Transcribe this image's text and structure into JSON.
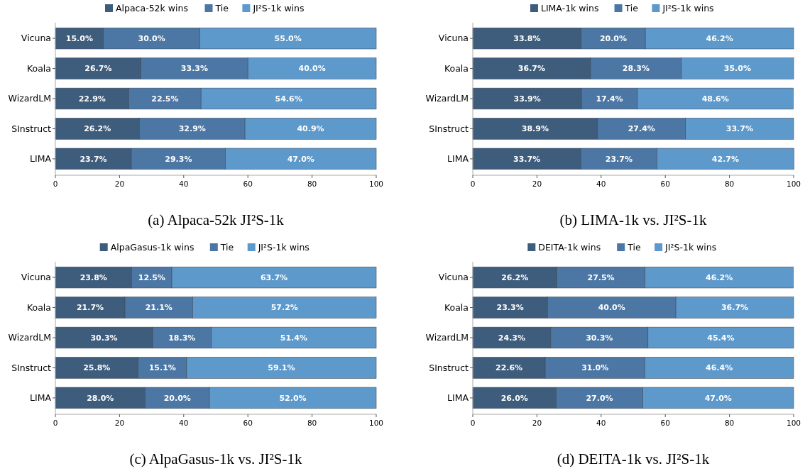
{
  "chart_data": [
    {
      "type": "bar",
      "orientation": "horizontal",
      "stacked": true,
      "title": "(a) Alpaca-52k JI²S-1k",
      "categories": [
        "Vicuna",
        "Koala",
        "WizardLM",
        "SInstruct",
        "LIMA"
      ],
      "xlim": [
        0,
        100
      ],
      "xticks": [
        0,
        20,
        40,
        60,
        80,
        100
      ],
      "legend": "top",
      "series": [
        {
          "name": "Alpaca-52k wins",
          "color": "#3e5c7c",
          "values": [
            15.0,
            26.7,
            22.9,
            26.2,
            23.7
          ],
          "value_labels": [
            "15.0%",
            "26.7%",
            "22.9%",
            "26.2%",
            "23.7%"
          ]
        },
        {
          "name": "Tie",
          "color": "#4c77a4",
          "values": [
            30.0,
            33.3,
            22.5,
            32.9,
            29.3
          ],
          "value_labels": [
            "30.0%",
            "33.3%",
            "22.5%",
            "32.9%",
            "29.3%"
          ]
        },
        {
          "name": "JI²S-1k wins",
          "color": "#5e99cc",
          "values": [
            55.0,
            40.0,
            54.6,
            40.9,
            47.0
          ],
          "value_labels": [
            "55.0%",
            "40.0%",
            "54.6%",
            "40.9%",
            "47.0%"
          ]
        }
      ]
    },
    {
      "type": "bar",
      "orientation": "horizontal",
      "stacked": true,
      "title": "(b) LIMA-1k vs. JI²S-1k",
      "categories": [
        "Vicuna",
        "Koala",
        "WizardLM",
        "SInstruct",
        "LIMA"
      ],
      "xlim": [
        0,
        100
      ],
      "xticks": [
        0,
        20,
        40,
        60,
        80,
        100
      ],
      "legend": "top",
      "series": [
        {
          "name": "LIMA-1k wins",
          "color": "#3e5c7c",
          "values": [
            33.8,
            36.7,
            33.9,
            38.9,
            33.7
          ],
          "value_labels": [
            "33.8%",
            "36.7%",
            "33.9%",
            "38.9%",
            "33.7%"
          ]
        },
        {
          "name": "Tie",
          "color": "#4c77a4",
          "values": [
            20.0,
            28.3,
            17.4,
            27.4,
            23.7
          ],
          "value_labels": [
            "20.0%",
            "28.3%",
            "17.4%",
            "27.4%",
            "23.7%"
          ]
        },
        {
          "name": "JI²S-1k wins",
          "color": "#5e99cc",
          "values": [
            46.2,
            35.0,
            48.6,
            33.7,
            42.7
          ],
          "value_labels": [
            "46.2%",
            "35.0%",
            "48.6%",
            "33.7%",
            "42.7%"
          ]
        }
      ]
    },
    {
      "type": "bar",
      "orientation": "horizontal",
      "stacked": true,
      "title": "(c) AlpaGasus-1k vs. JI²S-1k",
      "categories": [
        "Vicuna",
        "Koala",
        "WizardLM",
        "SInstruct",
        "LIMA"
      ],
      "xlim": [
        0,
        100
      ],
      "xticks": [
        0,
        20,
        40,
        60,
        80,
        100
      ],
      "legend": "top",
      "series": [
        {
          "name": "AlpaGasus-1k wins",
          "color": "#3e5c7c",
          "values": [
            23.8,
            21.7,
            30.3,
            25.8,
            28.0
          ],
          "value_labels": [
            "23.8%",
            "21.7%",
            "30.3%",
            "25.8%",
            "28.0%"
          ]
        },
        {
          "name": "Tie",
          "color": "#4c77a4",
          "values": [
            12.5,
            21.1,
            18.3,
            15.1,
            20.0
          ],
          "value_labels": [
            "12.5%",
            "21.1%",
            "18.3%",
            "15.1%",
            "20.0%"
          ]
        },
        {
          "name": "JI²S-1k wins",
          "color": "#5e99cc",
          "values": [
            63.7,
            57.2,
            51.4,
            59.1,
            52.0
          ],
          "value_labels": [
            "63.7%",
            "57.2%",
            "51.4%",
            "59.1%",
            "52.0%"
          ]
        }
      ]
    },
    {
      "type": "bar",
      "orientation": "horizontal",
      "stacked": true,
      "title": "(d) DEITA-1k vs. JI²S-1k",
      "categories": [
        "Vicuna",
        "Koala",
        "WizardLM",
        "SInstruct",
        "LIMA"
      ],
      "xlim": [
        0,
        100
      ],
      "xticks": [
        0,
        20,
        40,
        60,
        80,
        100
      ],
      "legend": "top",
      "series": [
        {
          "name": "DEITA-1k wins",
          "color": "#3e5c7c",
          "values": [
            26.2,
            23.3,
            24.3,
            22.6,
            26.0
          ],
          "value_labels": [
            "26.2%",
            "23.3%",
            "24.3%",
            "22.6%",
            "26.0%"
          ]
        },
        {
          "name": "Tie",
          "color": "#4c77a4",
          "values": [
            27.5,
            40.0,
            30.3,
            31.0,
            27.0
          ],
          "value_labels": [
            "27.5%",
            "40.0%",
            "30.3%",
            "31.0%",
            "27.0%"
          ]
        },
        {
          "name": "JI²S-1k wins",
          "color": "#5e99cc",
          "values": [
            46.2,
            36.7,
            45.4,
            46.4,
            47.0
          ],
          "value_labels": [
            "46.2%",
            "36.7%",
            "45.4%",
            "46.4%",
            "47.0%"
          ]
        }
      ]
    }
  ]
}
